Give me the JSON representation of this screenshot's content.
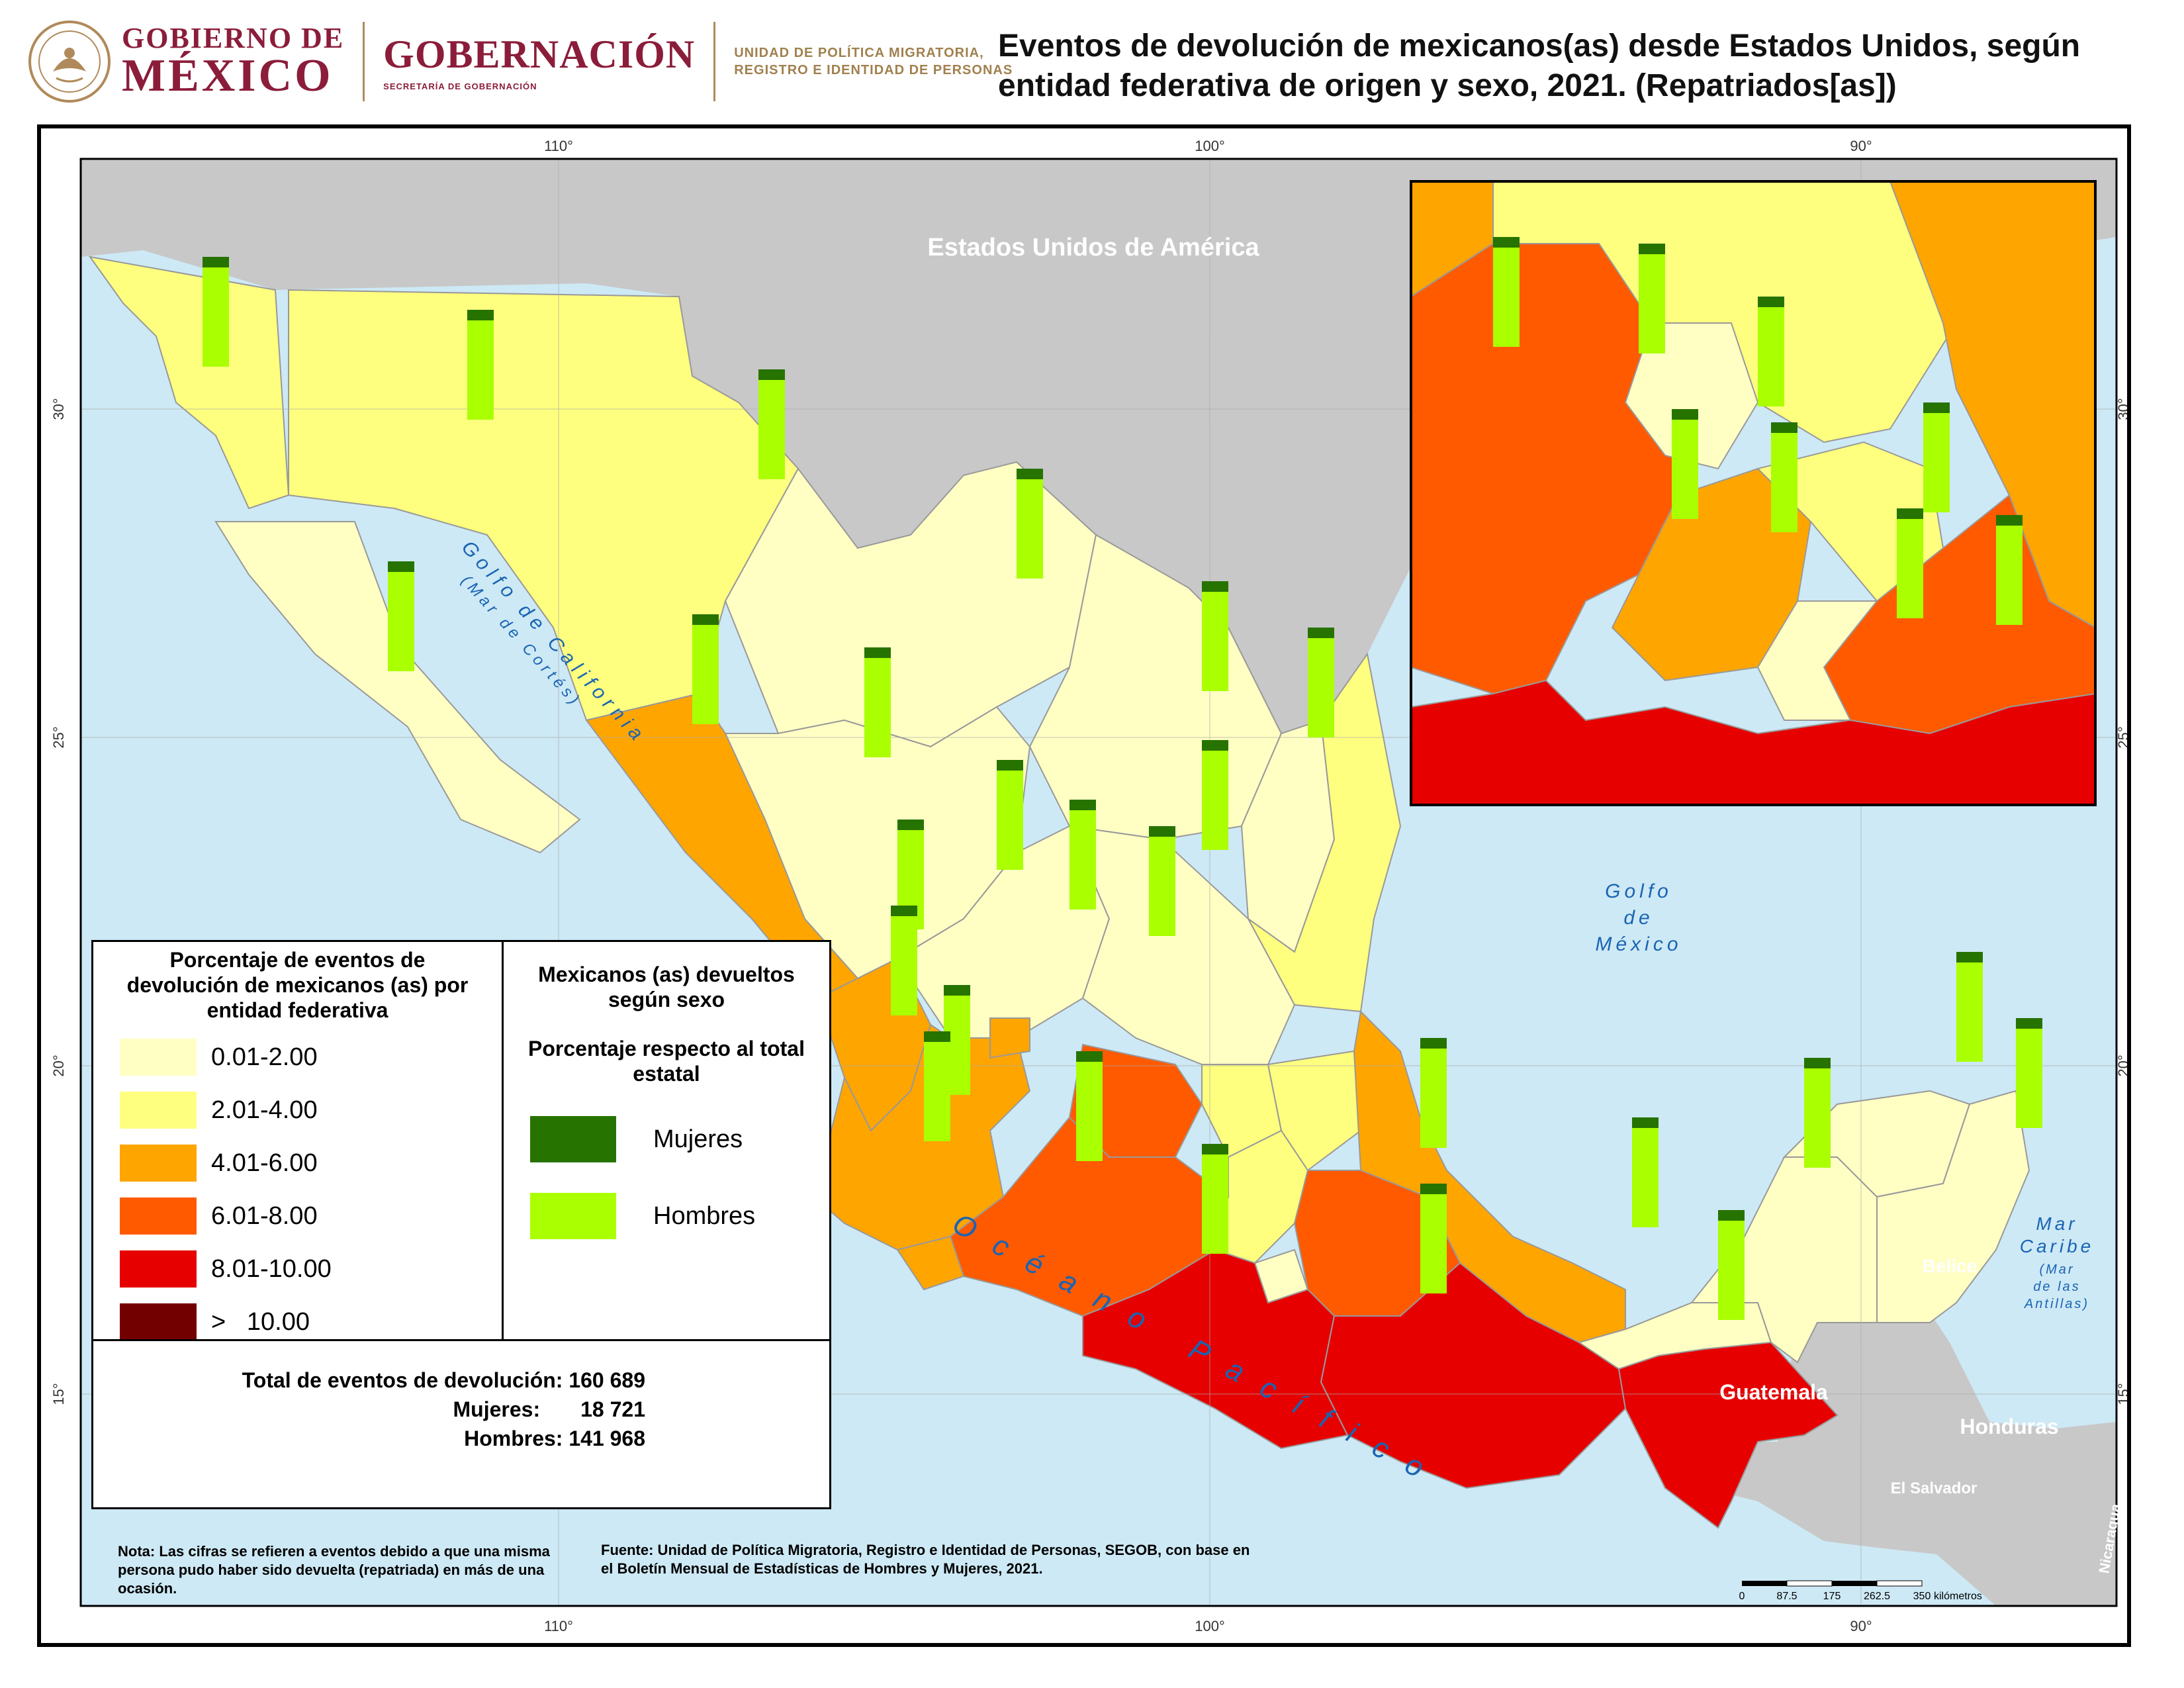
{
  "header": {
    "brand_line1": "GOBIERNO DE",
    "brand_line2": "MÉXICO",
    "brand_secretaria": "GOBERNACIÓN",
    "brand_secretaria_sub": "SECRETARÍA DE GOBERNACIÓN",
    "unit_line1": "UNIDAD DE POLÍTICA MIGRATORIA,",
    "unit_line2": "REGISTRO E IDENTIDAD DE PERSONAS",
    "title": "Eventos de devolución de mexicanos(as) desde Estados Unidos, según entidad federativa de origen y sexo, 2021. (Repatriados[as])"
  },
  "colors": {
    "sea": "#cde9f5",
    "foreign_land": "#c8c8c8",
    "class_1": "#ffffc4",
    "class_2": "#ffff7f",
    "class_3": "#ffa500",
    "class_4": "#ff5a00",
    "class_5": "#e60000",
    "class_6": "#730000",
    "mujeres": "#267300",
    "hombres": "#aaff00"
  },
  "graticule": {
    "lon_top": [
      "110°",
      "100°",
      "90°"
    ],
    "lon_bottom": [
      "110°",
      "100°",
      "90°"
    ],
    "lat_left": [
      "30°",
      "25°",
      "20°",
      "15°"
    ],
    "lat_right": [
      "30°",
      "25°",
      "20°",
      "15°"
    ]
  },
  "labels": {
    "usa": "Estados Unidos de América",
    "gulf_california": "Golfo de California",
    "gulf_california_sub": "(Mar de Cortés)",
    "gulf_mexico_1": "Golfo",
    "gulf_mexico_2": "de",
    "gulf_mexico_3": "México",
    "pacific": "Océano Pacífico",
    "caribbean_1": "Mar",
    "caribbean_2": "Caribe",
    "caribbean_3": "(Mar",
    "caribbean_4": "de las",
    "caribbean_5": "Antillas)",
    "belize": "Belice",
    "guatemala": "Guatemala",
    "honduras": "Honduras",
    "el_salvador": "El Salvador",
    "nicaragua": "Nicaragua"
  },
  "legend": {
    "title": "Porcentaje de eventos de devolución de mexicanos (as) por entidad federativa",
    "classes": [
      {
        "label": "0.01-2.00",
        "color_key": "class_1"
      },
      {
        "label": "2.01-4.00",
        "color_key": "class_2"
      },
      {
        "label": "4.01-6.00",
        "color_key": "class_3"
      },
      {
        "label": "6.01-8.00",
        "color_key": "class_4"
      },
      {
        "label": "8.01-10.00",
        "color_key": "class_5"
      },
      {
        "label": ">   10.00",
        "color_key": "class_6"
      }
    ]
  },
  "sex_legend": {
    "title": "Mexicanos (as) devueltos según sexo",
    "subtitle": "Porcentaje respecto al total estatal",
    "mujeres": "Mujeres",
    "hombres": "Hombres"
  },
  "totals": {
    "total_label": "Total de eventos de devolución:",
    "total_value": "160 689",
    "mujeres_label": "Mujeres:",
    "mujeres_value": "18 721",
    "hombres_label": "Hombres:",
    "hombres_value": "141 968"
  },
  "note": "Nota: Las cifras se refieren a eventos debido a que una misma persona pudo haber sido devuelta (repatriada) en más de una ocasión.",
  "source": "Fuente: Unidad de Política Migratoria, Registro e Identidad de Personas, SEGOB, con base en el Boletín Mensual de Estadísticas de Hombres y Mujeres, 2021.",
  "scale_bar": {
    "ticks": [
      "0",
      "87.5",
      "175",
      "262.5",
      "350"
    ],
    "unit": "kilómetros"
  }
}
